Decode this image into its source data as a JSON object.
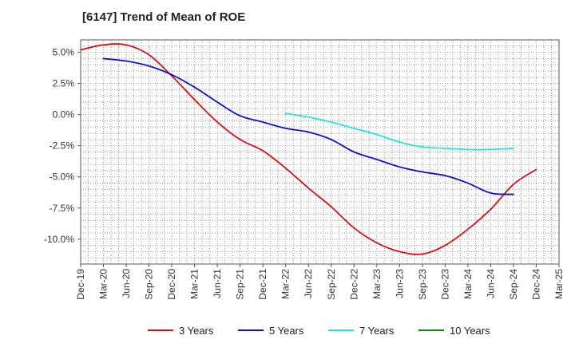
{
  "chart_data": {
    "type": "line",
    "title": "[6147]  Trend of Mean of ROE",
    "xlabel": "",
    "ylabel": "",
    "ylim": [
      -12.0,
      6.0
    ],
    "x_categories": [
      "Dec-19",
      "Mar-20",
      "Jun-20",
      "Sep-20",
      "Dec-20",
      "Mar-21",
      "Jun-21",
      "Sep-21",
      "Dec-21",
      "Mar-22",
      "Jun-22",
      "Sep-22",
      "Dec-22",
      "Mar-23",
      "Jun-23",
      "Sep-23",
      "Dec-23",
      "Mar-24",
      "Jun-24",
      "Sep-24",
      "Dec-24",
      "Mar-25"
    ],
    "y_ticks": [
      {
        "value": 5.0,
        "label": "5.0%"
      },
      {
        "value": 2.5,
        "label": "2.5%"
      },
      {
        "value": 0.0,
        "label": "0.0%"
      },
      {
        "value": -2.5,
        "label": "-2.5%"
      },
      {
        "value": -5.0,
        "label": "-5.0%"
      },
      {
        "value": -7.5,
        "label": "-7.5%"
      },
      {
        "value": -10.0,
        "label": "-10.0%"
      }
    ],
    "grid": true,
    "legend_position": "bottom",
    "series": [
      {
        "name": "3 Years",
        "color": "#dd1111",
        "start_index": 0,
        "values": [
          5.2,
          5.6,
          5.6,
          4.8,
          3.1,
          1.2,
          -0.6,
          -2.0,
          -2.9,
          -4.3,
          -5.9,
          -7.4,
          -9.1,
          -10.3,
          -11.0,
          -11.2,
          -10.5,
          -9.2,
          -7.6,
          -5.6,
          -4.4
        ]
      },
      {
        "name": "5 Years",
        "color": "#1111cc",
        "start_index": 1,
        "values": [
          4.5,
          4.3,
          3.9,
          3.2,
          2.2,
          1.0,
          -0.1,
          -0.6,
          -1.1,
          -1.4,
          -2.0,
          -3.0,
          -3.6,
          -4.2,
          -4.6,
          -4.9,
          -5.5,
          -6.3,
          -6.4
        ]
      },
      {
        "name": "7 Years",
        "color": "#22e5e5",
        "start_index": 9,
        "values": [
          0.1,
          -0.2,
          -0.6,
          -1.1,
          -1.6,
          -2.2,
          -2.6,
          -2.7,
          -2.8,
          -2.8,
          -2.7
        ]
      },
      {
        "name": "10 Years",
        "color": "#118811",
        "start_index": 0,
        "values": []
      }
    ]
  }
}
